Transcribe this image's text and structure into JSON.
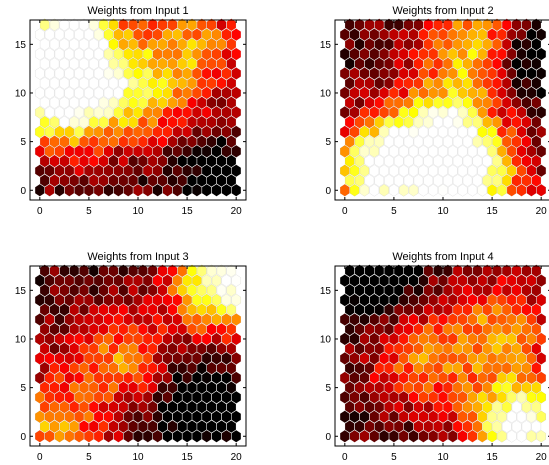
{
  "chart_data": [
    {
      "type": "heatmap",
      "title": "Weights from Input 1",
      "xlabel": "",
      "ylabel": "",
      "xlim": [
        -1,
        21
      ],
      "ylim": [
        -1,
        17.5
      ],
      "x_ticks": [
        "0",
        "5",
        "10",
        "15",
        "20"
      ],
      "y_ticks": [
        "0",
        "5",
        "10",
        "15"
      ],
      "grid": false,
      "colormap": "hot",
      "grid_size": [
        20,
        17
      ],
      "centers": [
        {
          "x": 3,
          "y": 15,
          "w": 1.0
        },
        {
          "x": 2,
          "y": 9,
          "w": 0.9
        },
        {
          "x": 10,
          "y": 10,
          "w": 0.55
        },
        {
          "x": 16,
          "y": 15,
          "w": 0.45
        }
      ],
      "dark_region": {
        "x": 19,
        "y": 0,
        "w": 1.0
      }
    },
    {
      "type": "heatmap",
      "title": "Weights from Input 2",
      "xlabel": "",
      "ylabel": "",
      "xlim": [
        -1,
        21
      ],
      "ylim": [
        -1,
        17.5
      ],
      "x_ticks": [
        "0",
        "5",
        "10",
        "15",
        "20"
      ],
      "y_ticks": [
        "0",
        "5",
        "10",
        "15"
      ],
      "grid": false,
      "colormap": "hot",
      "grid_size": [
        20,
        17
      ],
      "centers": [
        {
          "x": 4,
          "y": 2,
          "w": 1.0
        },
        {
          "x": 10,
          "y": 6,
          "w": 0.75
        },
        {
          "x": 13,
          "y": 1,
          "w": 0.8
        },
        {
          "x": 13,
          "y": 15,
          "w": 0.6
        }
      ],
      "dark_region": {
        "x": 19,
        "y": 14,
        "w": 1.0
      }
    },
    {
      "type": "heatmap",
      "title": "Weights from Input 3",
      "xlabel": "",
      "ylabel": "",
      "xlim": [
        -1,
        21
      ],
      "ylim": [
        -1,
        17.5
      ],
      "x_ticks": [
        "0",
        "5",
        "10",
        "15",
        "20"
      ],
      "y_ticks": [
        "0",
        "5",
        "10",
        "15"
      ],
      "grid": false,
      "colormap": "hot",
      "grid_size": [
        20,
        17
      ],
      "centers": [
        {
          "x": 19,
          "y": 16,
          "w": 1.0
        },
        {
          "x": 8,
          "y": 8,
          "w": 0.45
        },
        {
          "x": 1,
          "y": 1,
          "w": 0.5
        }
      ],
      "dark_region": {
        "x": 16,
        "y": 3,
        "w": 1.0
      }
    },
    {
      "type": "heatmap",
      "title": "Weights from Input 4",
      "xlabel": "",
      "ylabel": "",
      "xlim": [
        -1,
        21
      ],
      "ylim": [
        -1,
        17.5
      ],
      "x_ticks": [
        "0",
        "5",
        "10",
        "15",
        "20"
      ],
      "y_ticks": [
        "0",
        "5",
        "10",
        "15"
      ],
      "grid": false,
      "colormap": "hot",
      "grid_size": [
        20,
        17
      ],
      "centers": [
        {
          "x": 18,
          "y": 1,
          "w": 1.0
        },
        {
          "x": 8,
          "y": 8,
          "w": 0.45
        },
        {
          "x": 16,
          "y": 11,
          "w": 0.45
        }
      ],
      "dark_region": {
        "x": 3,
        "y": 16,
        "w": 1.0
      }
    }
  ]
}
